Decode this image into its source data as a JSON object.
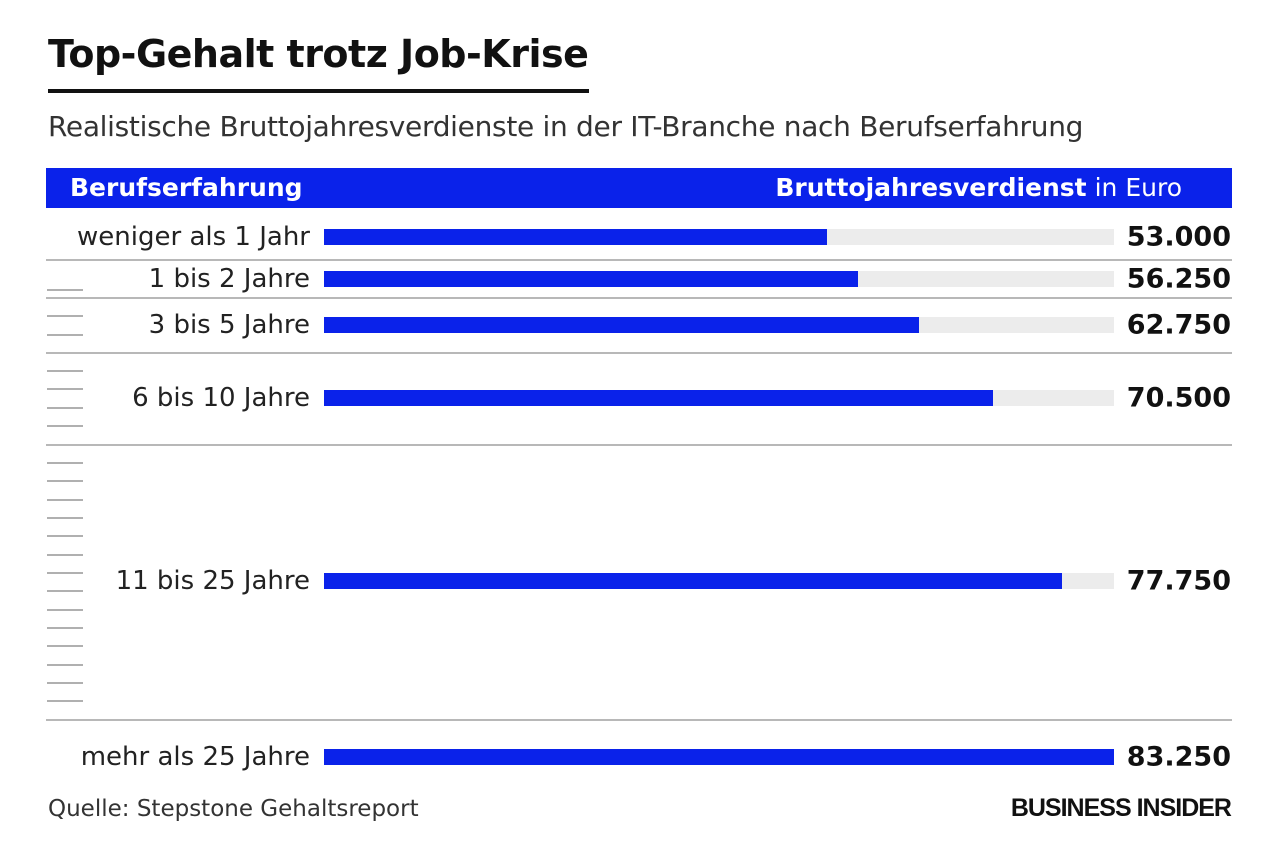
{
  "title": "Top-Gehalt trotz Job-Krise",
  "subtitle": "Realistische Bruttojahresverdienste in der IT-Branche nach Berufserfahrung",
  "header": {
    "left": "Berufserfahrung",
    "right_bold": "Bruttojahresverdienst",
    "right_unit": "in Euro"
  },
  "colors": {
    "bar": "#0a22ea",
    "track": "#ececec",
    "header": "#0a22ea"
  },
  "chart_data": {
    "type": "bar",
    "orientation": "horizontal",
    "categories": [
      "weniger als 1 Jahr",
      "1 bis 2 Jahre",
      "3 bis 5 Jahre",
      "6 bis 10 Jahre",
      "11 bis 25 Jahre",
      "mehr als 25 Jahre"
    ],
    "values": [
      53000,
      56250,
      62750,
      70500,
      77750,
      83250
    ],
    "value_labels": [
      "53.000",
      "56.250",
      "62.750",
      "70.500",
      "77.750",
      "83.250"
    ],
    "xlim": [
      0,
      83250
    ],
    "xlabel": "Bruttojahresverdienst in Euro",
    "ylabel": "Berufserfahrung",
    "grid": false,
    "legend": "none"
  },
  "source": "Quelle: Stepstone Gehaltsreport",
  "brand": "BUSINESS INSIDER"
}
